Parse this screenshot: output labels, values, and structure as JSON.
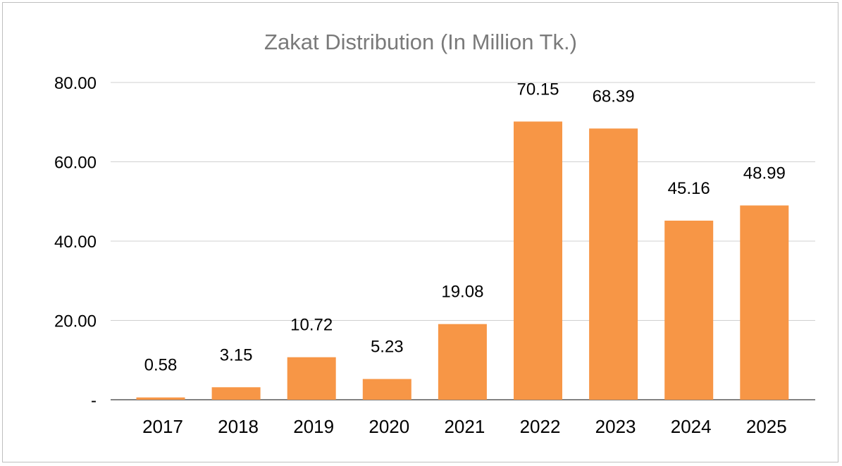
{
  "chart_data": {
    "type": "bar",
    "title": "Zakat Distribution (In Million Tk.)",
    "categories": [
      "2017",
      "2018",
      "2019",
      "2020",
      "2021",
      "2022",
      "2023",
      "2024",
      "2025"
    ],
    "values": [
      0.58,
      3.15,
      10.72,
      5.23,
      19.08,
      70.15,
      68.39,
      45.16,
      48.99
    ],
    "data_labels": [
      "0.58",
      "3.15",
      "10.72",
      "5.23",
      "19.08",
      "70.15",
      "68.39",
      "45.16",
      "48.99"
    ],
    "y_ticks": [
      0,
      20,
      40,
      60,
      80
    ],
    "y_tick_labels": [
      "-",
      "20.00",
      "40.00",
      "60.00",
      "80.00"
    ],
    "xlabel": "",
    "ylabel": "",
    "ylim": [
      0,
      80
    ],
    "grid": true,
    "legend": "none",
    "bar_color": "#F79646"
  }
}
